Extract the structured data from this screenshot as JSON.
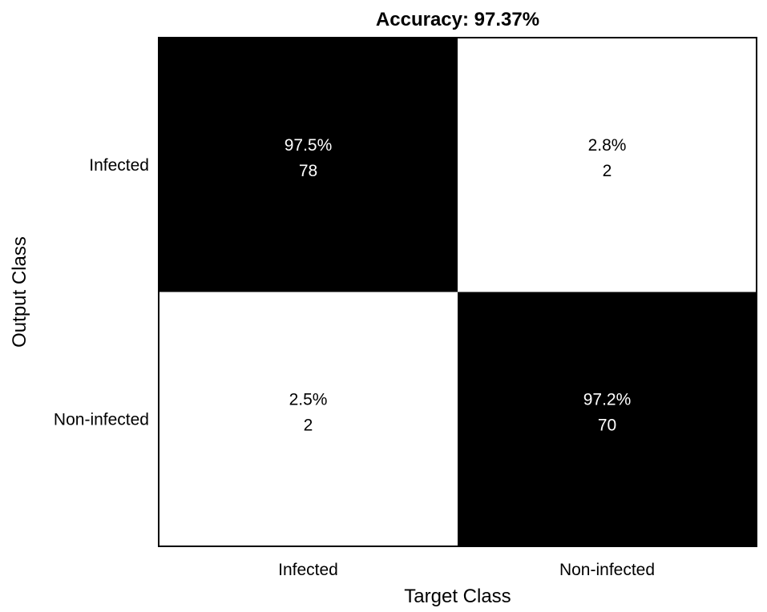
{
  "chart_data": {
    "type": "heatmap",
    "title": "Accuracy: 97.37%",
    "xlabel": "Target Class",
    "ylabel": "Output Class",
    "x_categories": [
      "Infected",
      "Non-infected"
    ],
    "y_categories": [
      "Infected",
      "Non-infected"
    ],
    "cells": [
      {
        "row": 0,
        "col": 0,
        "percent": "97.5%",
        "count": "78",
        "fill": "#000000",
        "text_color": "#ffffff"
      },
      {
        "row": 0,
        "col": 1,
        "percent": "2.8%",
        "count": "2",
        "fill": "#ffffff",
        "text_color": "#000000"
      },
      {
        "row": 1,
        "col": 0,
        "percent": "2.5%",
        "count": "2",
        "fill": "#ffffff",
        "text_color": "#000000"
      },
      {
        "row": 1,
        "col": 1,
        "percent": "97.2%",
        "count": "70",
        "fill": "#000000",
        "text_color": "#ffffff"
      }
    ],
    "grid": false,
    "legend": "none"
  }
}
